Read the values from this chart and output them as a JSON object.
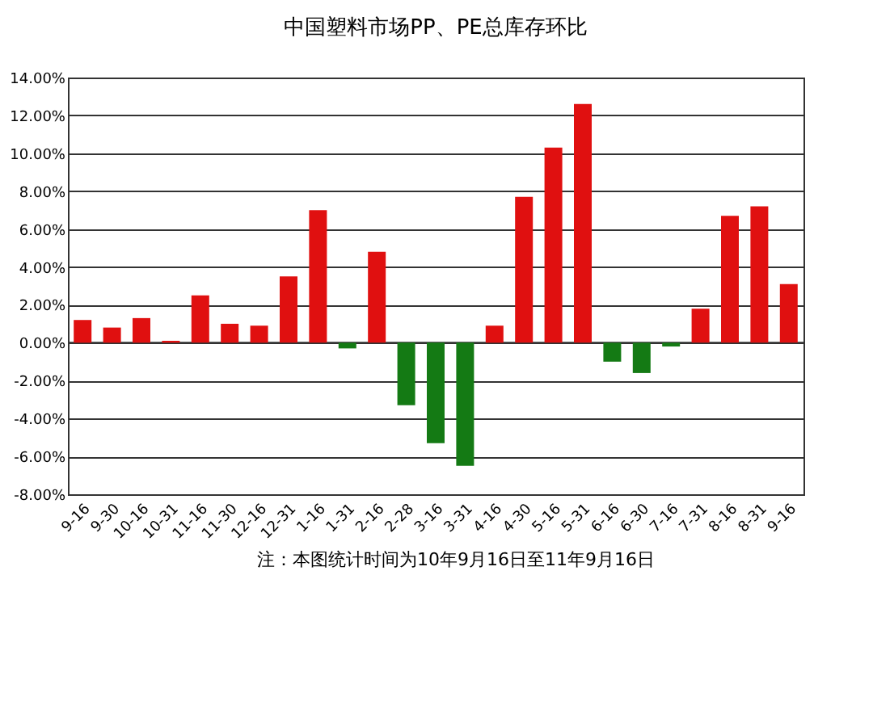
{
  "chart_data": {
    "type": "bar",
    "title": "中国塑料市场PP、PE总库存环比",
    "categories": [
      "9-16",
      "9-30",
      "10-16",
      "10-31",
      "11-16",
      "11-30",
      "12-16",
      "12-31",
      "1-16",
      "1-31",
      "2-16",
      "2-28",
      "3-16",
      "3-31",
      "4-16",
      "4-30",
      "5-16",
      "5-31",
      "6-16",
      "6-30",
      "7-16",
      "7-31",
      "8-16",
      "8-31",
      "9-16"
    ],
    "values": [
      1.2,
      0.8,
      1.3,
      0.1,
      2.5,
      1.0,
      0.9,
      3.5,
      7.0,
      -0.3,
      4.8,
      -3.3,
      -5.3,
      -6.5,
      0.9,
      7.7,
      10.3,
      12.6,
      -1.0,
      -1.6,
      -0.2,
      1.8,
      6.7,
      7.2,
      3.1
    ],
    "colors": [
      "#e01010",
      "#e01010",
      "#e01010",
      "#e01010",
      "#e01010",
      "#e01010",
      "#e01010",
      "#e01010",
      "#e01010",
      "#147a14",
      "#e01010",
      "#147a14",
      "#147a14",
      "#147a14",
      "#e01010",
      "#e01010",
      "#e01010",
      "#e01010",
      "#147a14",
      "#147a14",
      "#147a14",
      "#e01010",
      "#e01010",
      "#e01010",
      "#e01010"
    ],
    "ylim": [
      -8,
      14
    ],
    "yticks": [
      {
        "value": -8,
        "label": "-8.00%"
      },
      {
        "value": -6,
        "label": "-6.00%"
      },
      {
        "value": -4,
        "label": "-4.00%"
      },
      {
        "value": -2,
        "label": "-2.00%"
      },
      {
        "value": 0,
        "label": "0.00%"
      },
      {
        "value": 2,
        "label": "2.00%"
      },
      {
        "value": 4,
        "label": "4.00%"
      },
      {
        "value": 6,
        "label": "6.00%"
      },
      {
        "value": 8,
        "label": "8.00%"
      },
      {
        "value": 10,
        "label": "10.00%"
      },
      {
        "value": 12,
        "label": "12.00%"
      },
      {
        "value": 14,
        "label": "14.00%"
      }
    ],
    "grid": "y",
    "annotations": [
      "注：本图统计时间为10年9月16日至11年9月16日"
    ]
  }
}
